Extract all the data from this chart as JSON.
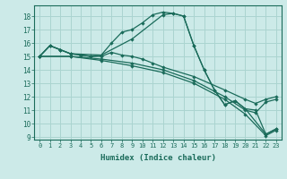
{
  "xlabel": "Humidex (Indice chaleur)",
  "bg_color": "#cceae8",
  "grid_color": "#aad4d0",
  "line_color": "#1a6b5a",
  "xlim": [
    -0.5,
    23.5
  ],
  "ylim": [
    8.8,
    18.8
  ],
  "yticks": [
    9,
    10,
    11,
    12,
    13,
    14,
    15,
    16,
    17,
    18
  ],
  "xticks": [
    0,
    1,
    2,
    3,
    4,
    5,
    6,
    7,
    8,
    9,
    10,
    11,
    12,
    13,
    14,
    15,
    16,
    17,
    18,
    19,
    20,
    21,
    22,
    23
  ],
  "series": [
    {
      "x": [
        0,
        1,
        2,
        3,
        4,
        5,
        6,
        7,
        8,
        9,
        10,
        11,
        12,
        13,
        14,
        15,
        16,
        17,
        18,
        19,
        20,
        22,
        23
      ],
      "y": [
        15.0,
        15.8,
        15.5,
        15.2,
        15.1,
        15.0,
        15.1,
        16.0,
        16.8,
        17.0,
        17.5,
        18.1,
        18.3,
        18.2,
        18.0,
        15.8,
        14.0,
        12.5,
        11.4,
        11.7,
        11.1,
        9.2,
        9.6
      ]
    },
    {
      "x": [
        0,
        1,
        2,
        3,
        6,
        9,
        12,
        13,
        14,
        15,
        16,
        17,
        18,
        19,
        20,
        21,
        22,
        23
      ],
      "y": [
        15.0,
        15.8,
        15.5,
        15.2,
        15.1,
        16.3,
        18.1,
        18.2,
        18.0,
        15.8,
        14.0,
        12.5,
        11.4,
        11.7,
        11.1,
        11.0,
        9.2,
        9.6
      ]
    },
    {
      "x": [
        0,
        1,
        2,
        3,
        4,
        5,
        6,
        7,
        8,
        9,
        10,
        11,
        12,
        15,
        18,
        20,
        21,
        22,
        23
      ],
      "y": [
        15.0,
        15.8,
        15.5,
        15.2,
        15.1,
        15.0,
        15.0,
        15.3,
        15.1,
        15.0,
        14.8,
        14.5,
        14.2,
        13.5,
        12.5,
        11.8,
        11.5,
        11.8,
        12.0
      ]
    },
    {
      "x": [
        0,
        3,
        6,
        9,
        12,
        15,
        18,
        20,
        21,
        22,
        23
      ],
      "y": [
        15.0,
        15.0,
        14.8,
        14.5,
        14.0,
        13.2,
        12.0,
        11.0,
        10.8,
        11.6,
        11.8
      ]
    },
    {
      "x": [
        0,
        3,
        6,
        9,
        12,
        15,
        18,
        20,
        22,
        23
      ],
      "y": [
        15.0,
        15.0,
        14.7,
        14.3,
        13.8,
        13.0,
        11.8,
        10.7,
        9.1,
        9.5
      ]
    }
  ]
}
